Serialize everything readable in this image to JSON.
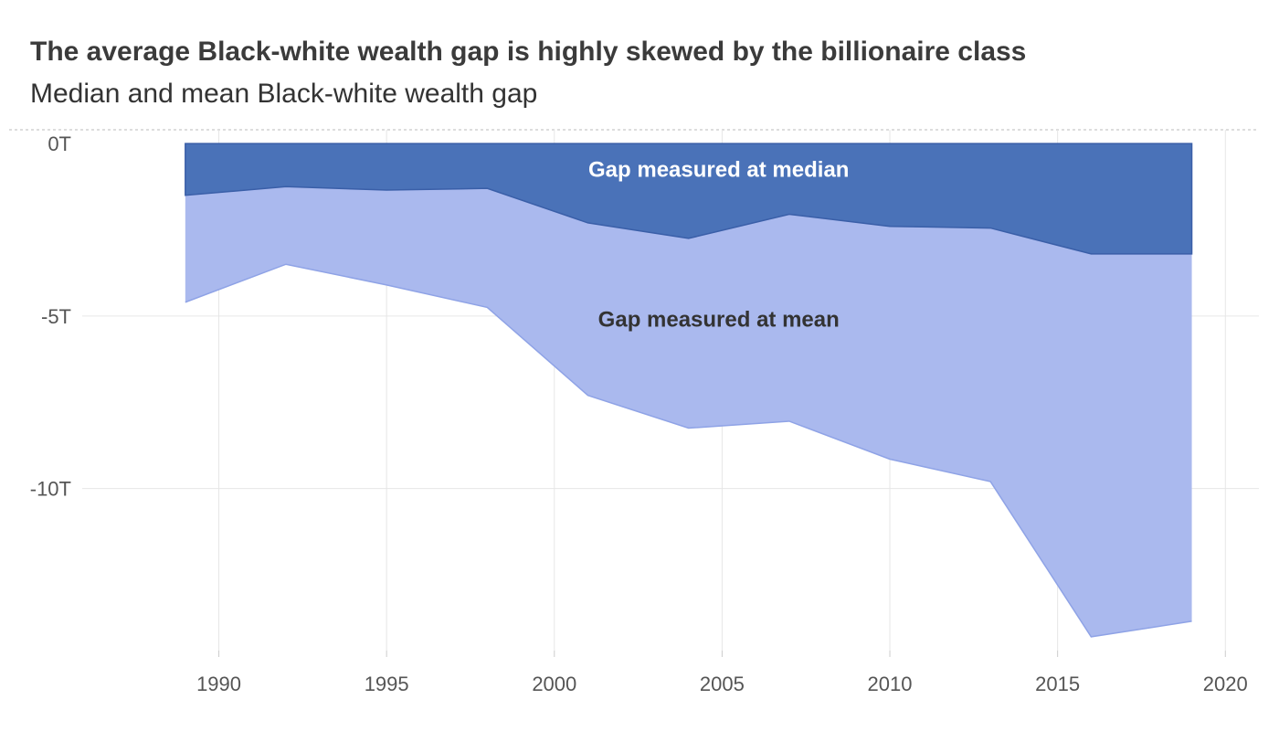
{
  "title": "The average Black-white wealth gap is highly skewed by the billionaire class",
  "subtitle": "Median and mean Black-white wealth gap",
  "colors": {
    "median_fill": "#4a72b8",
    "median_line": "#3a5fa8",
    "mean_fill": "#aab9ee",
    "mean_line": "#8fa3e6",
    "grid": "#e6e6e6",
    "zero_line": "#bbbbbb",
    "annotation_light": "#ffffff",
    "annotation_dark": "#333333"
  },
  "chart_data": {
    "type": "area",
    "x": [
      1989,
      1992,
      1995,
      1998,
      2001,
      2004,
      2007,
      2010,
      2013,
      2016,
      2019
    ],
    "series": [
      {
        "name": "Gap measured at median",
        "values": [
          -1.5,
          -1.25,
          -1.35,
          -1.3,
          -2.3,
          -2.75,
          -2.05,
          -2.4,
          -2.45,
          -3.2,
          -3.2
        ]
      },
      {
        "name": "Gap measured at mean",
        "values": [
          -4.6,
          -3.5,
          -4.1,
          -4.75,
          -7.3,
          -8.25,
          -8.05,
          -9.15,
          -9.8,
          -14.3,
          -13.85
        ]
      }
    ],
    "xlim": [
      1986.2,
      2021
    ],
    "ylim": [
      -14.7,
      0.4
    ],
    "x_ticks": [
      1990,
      1995,
      2000,
      2005,
      2010,
      2015,
      2020
    ],
    "x_tick_labels": [
      "1990",
      "1995",
      "2000",
      "2005",
      "2010",
      "2015",
      "2020"
    ],
    "y_ticks": [
      0,
      -5,
      -10
    ],
    "y_tick_labels": [
      "0T",
      "-5T",
      "-10T"
    ],
    "grid": true,
    "annotations": [
      {
        "text": "Gap measured at median",
        "x": 2004.9,
        "y": -0.75
      },
      {
        "text": "Gap measured at mean",
        "x": 2004.9,
        "y": -5.1
      }
    ]
  }
}
